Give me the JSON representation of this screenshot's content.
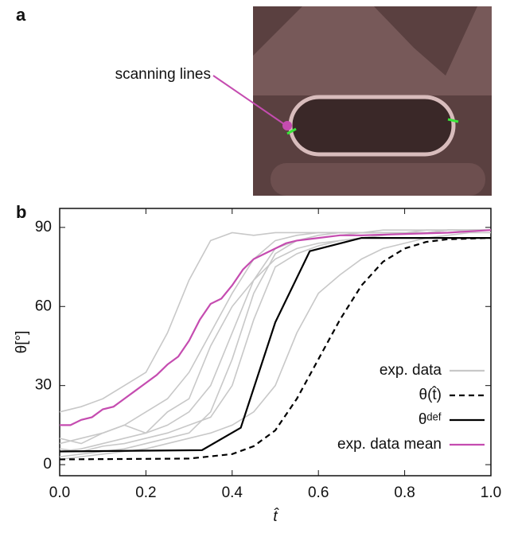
{
  "panel_labels": [
    "a",
    "b"
  ],
  "annotation": "scanning lines",
  "chart_data": {
    "type": "line",
    "x_label": "t̂",
    "y_label": "θ[°]",
    "xlim": [
      0,
      1
    ],
    "ylim": [
      -4.2,
      97.2
    ],
    "xticks": [
      {
        "value": 0,
        "label": "0.0"
      },
      0.2,
      0.4,
      0.6,
      0.8,
      {
        "value": 1,
        "label": "1.0"
      }
    ],
    "yticks": [
      0,
      30,
      60,
      90
    ],
    "grid": false,
    "legend": "lower right",
    "series": [
      {
        "color": "#c8c8c8",
        "x": [
          0,
          0.05,
          0.1,
          0.15,
          0.2,
          0.25,
          0.3,
          0.35,
          0.4,
          0.45,
          0.5,
          0.55,
          0.6,
          0.65,
          0.7,
          0.75,
          0.8,
          0.85,
          0.9,
          0.95,
          1
        ],
        "values": [
          20,
          22,
          25,
          30,
          35,
          50,
          70,
          85,
          88,
          87,
          88,
          88,
          88,
          88,
          88,
          89,
          89,
          89,
          89,
          89,
          89
        ]
      },
      {
        "color": "#c8c8c8",
        "x": [
          0,
          0.05,
          0.1,
          0.15,
          0.2,
          0.25,
          0.3,
          0.35,
          0.4,
          0.45,
          0.5,
          0.55,
          0.6,
          0.65,
          0.7,
          0.75,
          0.8,
          0.85,
          0.9,
          0.95,
          1
        ],
        "values": [
          8,
          10,
          12,
          15,
          20,
          25,
          35,
          50,
          65,
          78,
          85,
          87,
          88,
          88,
          88,
          88,
          88,
          89,
          89,
          89,
          89
        ]
      },
      {
        "color": "#c8c8c8",
        "x": [
          0,
          0.05,
          0.1,
          0.15,
          0.2,
          0.25,
          0.3,
          0.35,
          0.4,
          0.45,
          0.5,
          0.55,
          0.6,
          0.65,
          0.7,
          0.75,
          0.8,
          0.85,
          0.9,
          0.95,
          1
        ],
        "values": [
          5,
          6,
          8,
          10,
          12,
          15,
          20,
          30,
          50,
          70,
          82,
          85,
          87,
          88,
          88,
          88,
          88,
          88,
          89,
          89,
          89
        ]
      },
      {
        "color": "#c8c8c8",
        "x": [
          0,
          0.05,
          0.1,
          0.15,
          0.2,
          0.25,
          0.3,
          0.35,
          0.4,
          0.45,
          0.5,
          0.55,
          0.6,
          0.65,
          0.7,
          0.75,
          0.8,
          0.85,
          0.9,
          0.95,
          1
        ],
        "values": [
          3,
          4,
          5,
          6,
          8,
          10,
          12,
          20,
          40,
          65,
          80,
          85,
          86,
          87,
          88,
          88,
          88,
          88,
          89,
          89,
          89
        ]
      },
      {
        "color": "#c8c8c8",
        "x": [
          0,
          0.05,
          0.1,
          0.15,
          0.2,
          0.25,
          0.3,
          0.35,
          0.4,
          0.45,
          0.5,
          0.55,
          0.6,
          0.65,
          0.7,
          0.75,
          0.8,
          0.85,
          0.9,
          0.95,
          1
        ],
        "values": [
          10,
          8,
          12,
          15,
          12,
          20,
          25,
          45,
          60,
          70,
          78,
          82,
          84,
          85,
          86,
          87,
          88,
          88,
          89,
          89,
          89
        ]
      },
      {
        "color": "#c8c8c8",
        "x": [
          0,
          0.05,
          0.1,
          0.15,
          0.2,
          0.25,
          0.3,
          0.35,
          0.4,
          0.45,
          0.5,
          0.55,
          0.6,
          0.65,
          0.7,
          0.75,
          0.8,
          0.85,
          0.9,
          0.95,
          1
        ],
        "values": [
          6,
          5,
          7,
          8,
          10,
          12,
          15,
          18,
          30,
          55,
          75,
          80,
          83,
          85,
          86,
          87,
          88,
          88,
          88,
          89,
          89
        ]
      },
      {
        "name": "exp. data",
        "color": "#c8c8c8",
        "x": [
          0,
          0.05,
          0.1,
          0.15,
          0.2,
          0.25,
          0.3,
          0.35,
          0.4,
          0.45,
          0.5,
          0.55,
          0.6,
          0.65,
          0.7,
          0.75,
          0.8,
          0.85,
          0.9,
          0.95,
          1
        ],
        "values": [
          2,
          3,
          4,
          5,
          6,
          8,
          10,
          12,
          15,
          20,
          30,
          50,
          65,
          72,
          78,
          82,
          84,
          86,
          87,
          88,
          88
        ]
      },
      {
        "name": "θ(t̂)",
        "color": "#000000",
        "dash": true,
        "x": [
          0,
          0.3,
          0.4,
          0.45,
          0.5,
          0.55,
          0.6,
          0.65,
          0.7,
          0.75,
          0.8,
          0.85,
          0.9,
          1
        ],
        "values": [
          2,
          2.3,
          4,
          7,
          13,
          25,
          40,
          55,
          68,
          77,
          82,
          84.5,
          85.5,
          86
        ]
      },
      {
        "name": "θᵈᵉᶠ",
        "color": "#000000",
        "x": [
          0,
          0.33,
          0.42,
          0.5,
          0.58,
          0.7,
          1
        ],
        "values": [
          5,
          5.5,
          14,
          54,
          81,
          86,
          86
        ]
      },
      {
        "name": "exp. data mean",
        "color": "#c54cb0",
        "x": [
          0,
          0.025,
          0.05,
          0.075,
          0.1,
          0.125,
          0.15,
          0.175,
          0.2,
          0.225,
          0.25,
          0.275,
          0.3,
          0.325,
          0.35,
          0.375,
          0.4,
          0.425,
          0.45,
          0.475,
          0.5,
          0.525,
          0.55,
          0.6,
          0.65,
          0.7,
          0.8,
          0.9,
          1
        ],
        "values": [
          15,
          15,
          17,
          18,
          21,
          22,
          25,
          28,
          31,
          34,
          38,
          41,
          47,
          55,
          61,
          63,
          68,
          74,
          78,
          80,
          82,
          84,
          85,
          86,
          87,
          87,
          87.5,
          88,
          89
        ]
      }
    ]
  }
}
